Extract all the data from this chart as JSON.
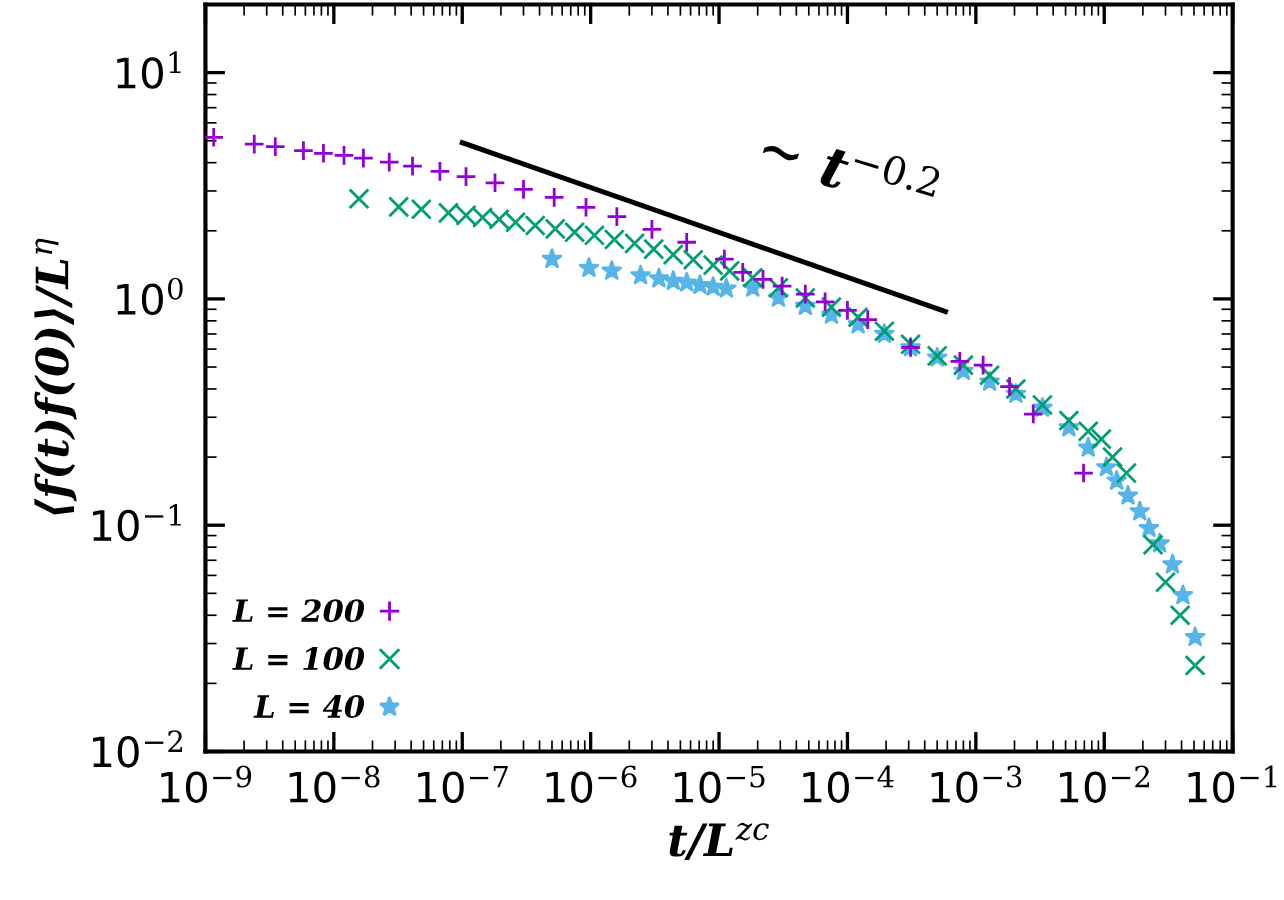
{
  "chart_data": {
    "type": "scatter",
    "xlabel": "t/L$^{zc}$",
    "ylabel": "⟨f(t)f(0)⟩/L$^{η}$",
    "log": "xy",
    "xlim": [
      1e-09,
      0.1
    ],
    "ylim": [
      0.01,
      20
    ],
    "xticks": [
      {
        "value": 1e-09,
        "label": "10$^{−9}$"
      },
      {
        "value": 1e-08,
        "label": "10$^{−8}$"
      },
      {
        "value": 1e-07,
        "label": "10$^{−7}$"
      },
      {
        "value": 1e-06,
        "label": "10$^{−6}$"
      },
      {
        "value": 1e-05,
        "label": "10$^{−5}$"
      },
      {
        "value": 0.0001,
        "label": "10$^{−4}$"
      },
      {
        "value": 0.001,
        "label": "10$^{−3}$"
      },
      {
        "value": 0.01,
        "label": "10$^{−2}$"
      },
      {
        "value": 0.1,
        "label": "10$^{−1}$"
      }
    ],
    "yticks": [
      {
        "value": 0.01,
        "label": "10$^{−2}$"
      },
      {
        "value": 0.1,
        "label": "10$^{−1}$"
      },
      {
        "value": 1,
        "label": "10$^{0}$"
      },
      {
        "value": 10,
        "label": "10$^{1}$"
      }
    ],
    "grid": false,
    "legend": "bottom left",
    "annotations": [
      "∼ t$^{−0.2}$"
    ],
    "series": [
      {
        "name": "L = 200",
        "color": "#9400d3",
        "marker": "plus",
        "x": [
          1.16e-09,
          2.4e-09,
          3.5e-09,
          5.8e-09,
          8.3e-09,
          1.2e-08,
          1.7e-08,
          2.7e-08,
          4.1e-08,
          6.7e-08,
          1.07e-07,
          1.8e-07,
          3e-07,
          5.2e-07,
          9.2e-07,
          1.6e-06,
          3e-06,
          5.6e-06,
          1.1e-05,
          1.53e-05,
          2.2e-05,
          3.1e-05,
          4.7e-05,
          6.7e-05,
          0.0001,
          0.000144,
          0.00031,
          0.00075,
          0.00114,
          0.00183,
          0.0028,
          0.0069
        ],
        "values": [
          5.18,
          4.83,
          4.71,
          4.52,
          4.4,
          4.31,
          4.19,
          4.02,
          3.86,
          3.66,
          3.47,
          3.26,
          3.05,
          2.81,
          2.54,
          2.31,
          2.03,
          1.78,
          1.5,
          1.31,
          1.22,
          1.14,
          1.05,
          0.97,
          0.89,
          0.81,
          0.61,
          0.53,
          0.51,
          0.41,
          0.31,
          0.17
        ]
      },
      {
        "name": "L = 100",
        "color": "#009e73",
        "marker": "cross",
        "x": [
          1.57e-08,
          3.2e-08,
          4.8e-08,
          7.8e-08,
          1.07e-07,
          1.44e-07,
          1.94e-07,
          2.6e-07,
          3.7e-07,
          5.3e-07,
          7.5e-07,
          1.07e-06,
          1.53e-06,
          2.2e-06,
          3.1e-06,
          4.4e-06,
          6.3e-06,
          9e-06,
          1.21e-05,
          1.83e-05,
          2.9e-05,
          4.7e-05,
          7.5e-05,
          0.000121,
          0.000194,
          0.00031,
          0.0005,
          0.0008,
          0.00128,
          0.00205,
          0.0033,
          0.0053,
          0.0075,
          0.0095,
          0.0116,
          0.0149,
          0.024,
          0.03,
          0.039,
          0.051
        ],
        "values": [
          2.77,
          2.55,
          2.49,
          2.4,
          2.34,
          2.29,
          2.25,
          2.18,
          2.11,
          2.04,
          1.97,
          1.91,
          1.83,
          1.76,
          1.66,
          1.57,
          1.49,
          1.41,
          1.33,
          1.24,
          1.12,
          1.01,
          0.92,
          0.83,
          0.72,
          0.63,
          0.56,
          0.51,
          0.46,
          0.4,
          0.34,
          0.29,
          0.26,
          0.24,
          0.2,
          0.17,
          0.082,
          0.056,
          0.04,
          0.024
        ]
      },
      {
        "name": "L = 40",
        "color": "#56b4e9",
        "marker": "star",
        "x": [
          5e-07,
          9.7e-07,
          1.46e-06,
          2.45e-06,
          3.4e-06,
          4.4e-06,
          5.6e-06,
          7.1e-06,
          9e-06,
          1.14e-05,
          1.83e-05,
          2.9e-05,
          4.7e-05,
          7.5e-05,
          0.000121,
          0.000194,
          0.00031,
          0.0005,
          0.0008,
          0.00128,
          0.00205,
          0.0033,
          0.0053,
          0.0075,
          0.0104,
          0.0125,
          0.0153,
          0.0189,
          0.0223,
          0.027,
          0.034,
          0.041,
          0.051
        ],
        "values": [
          1.5,
          1.37,
          1.33,
          1.27,
          1.23,
          1.2,
          1.18,
          1.15,
          1.13,
          1.11,
          1.12,
          1.01,
          0.93,
          0.85,
          0.77,
          0.7,
          0.61,
          0.55,
          0.48,
          0.43,
          0.38,
          0.33,
          0.27,
          0.22,
          0.18,
          0.157,
          0.135,
          0.115,
          0.097,
          0.083,
          0.067,
          0.049,
          0.032
        ]
      },
      {
        "type": "line",
        "color": "#000000",
        "x": [
          1e-07,
          0.00058
        ],
        "values": [
          4.9,
          0.88
        ]
      }
    ]
  }
}
